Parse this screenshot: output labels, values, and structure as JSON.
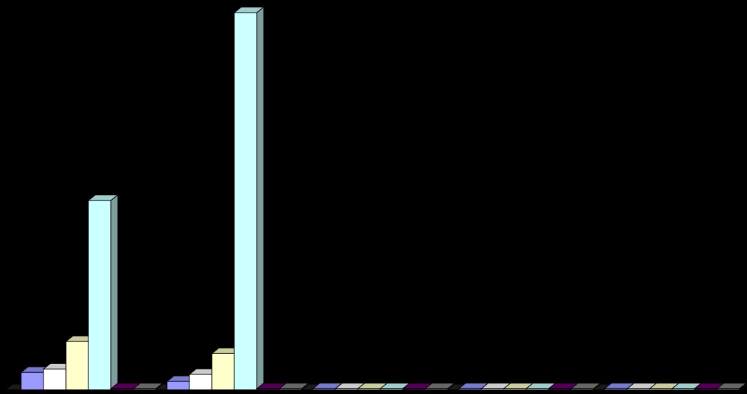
{
  "chart_data": {
    "type": "bar",
    "style": "3d-clustered-columns",
    "background": "#000000",
    "grid": false,
    "legend": "none",
    "title": "",
    "xlabel": "",
    "ylabel": "",
    "ylim": [
      0,
      100
    ],
    "categories": [
      "",
      "",
      "",
      "",
      ""
    ],
    "series": [
      {
        "color": "#9999ff",
        "values": [
          4.6,
          2.2,
          0.3,
          0.3,
          0.3
        ]
      },
      {
        "color": "#ffffff",
        "values": [
          5.5,
          4.1,
          0.2,
          0.2,
          0.2
        ]
      },
      {
        "color": "#ffffcc",
        "values": [
          12.8,
          9.6,
          0.2,
          0.2,
          0.2
        ]
      },
      {
        "color": "#ccffff",
        "values": [
          50.2,
          100,
          0.2,
          0.2,
          0.2
        ]
      },
      {
        "color": "#660066",
        "values": [
          0.2,
          0.2,
          0.2,
          0.2,
          0.2
        ]
      },
      {
        "color": "#808080",
        "values": [
          0.1,
          0.1,
          0.1,
          0.1,
          0.1
        ]
      }
    ]
  }
}
